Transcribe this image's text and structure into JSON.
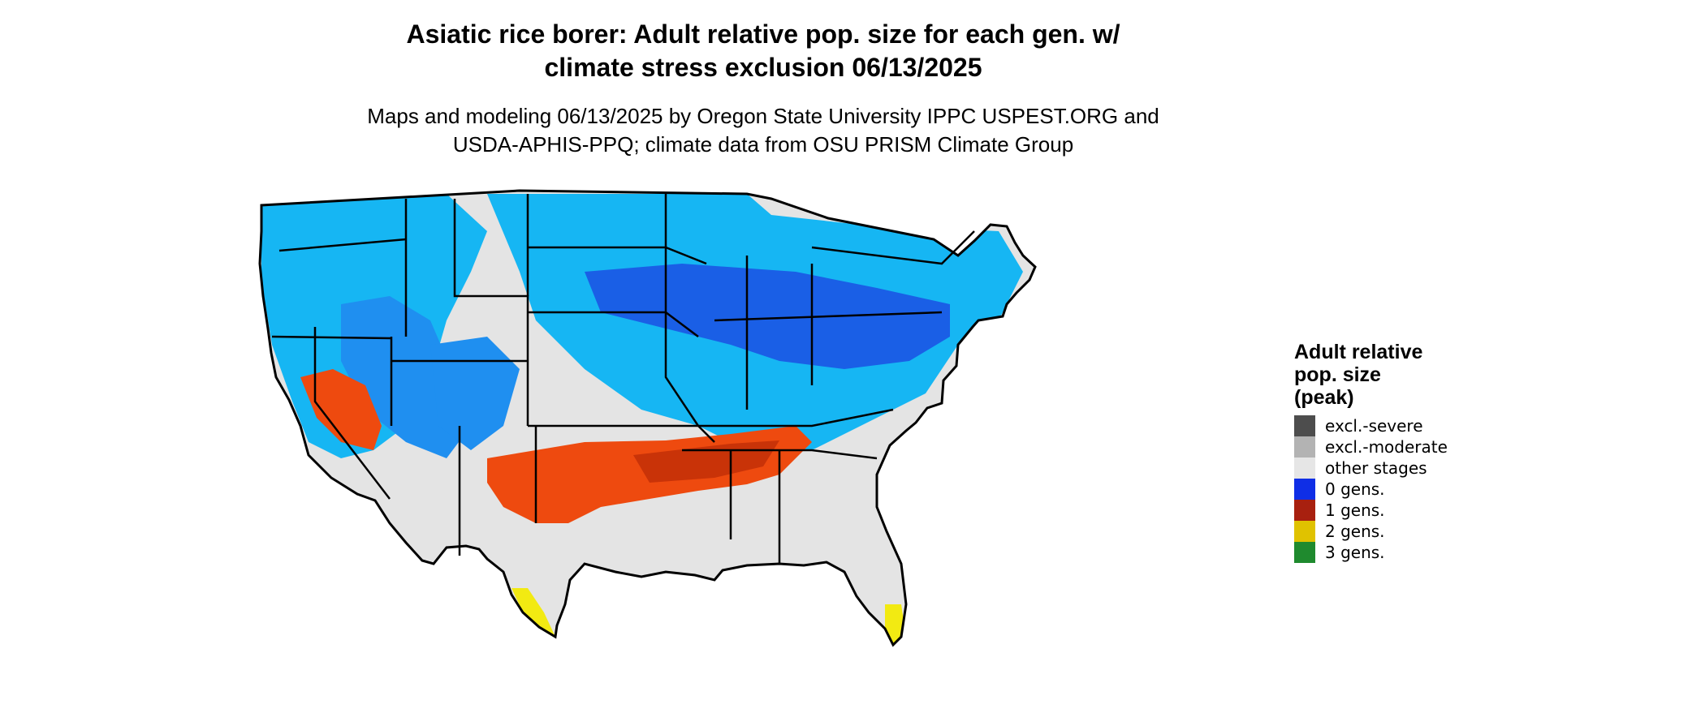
{
  "title_line1": "Asiatic rice borer: Adult relative pop. size for each gen. w/",
  "title_line2": "climate stress exclusion 06/13/2025",
  "subtitle_line1": "Maps and modeling 06/13/2025 by Oregon State University IPPC USPEST.ORG and",
  "subtitle_line2": "USDA-APHIS-PPQ; climate data from OSU PRISM Climate Group",
  "legend": {
    "title_line1": "Adult relative",
    "title_line2": "pop. size",
    "title_line3": "(peak)",
    "items": [
      {
        "label": "excl.-severe",
        "color": "#4d4d4d"
      },
      {
        "label": "excl.-moderate",
        "color": "#b3b3b3"
      },
      {
        "label": "other stages",
        "color": "#e6e6e6"
      },
      {
        "label": "0 gens.",
        "color": "#0f2ee6"
      },
      {
        "label": "1 gens.",
        "color": "#a8200f"
      },
      {
        "label": "2 gens.",
        "color": "#e0c200"
      },
      {
        "label": "3 gens.",
        "color": "#1f8a2e"
      }
    ]
  },
  "map_colors": {
    "background_land": "#e4e4e4",
    "blue_light": "#16b6f3",
    "blue_mid": "#1f8ff0",
    "blue_dark": "#1a5fe6",
    "orange": "#ee4a0f",
    "orange_dark": "#c93308",
    "yellow": "#f2ea12",
    "state_border": "#000000"
  }
}
